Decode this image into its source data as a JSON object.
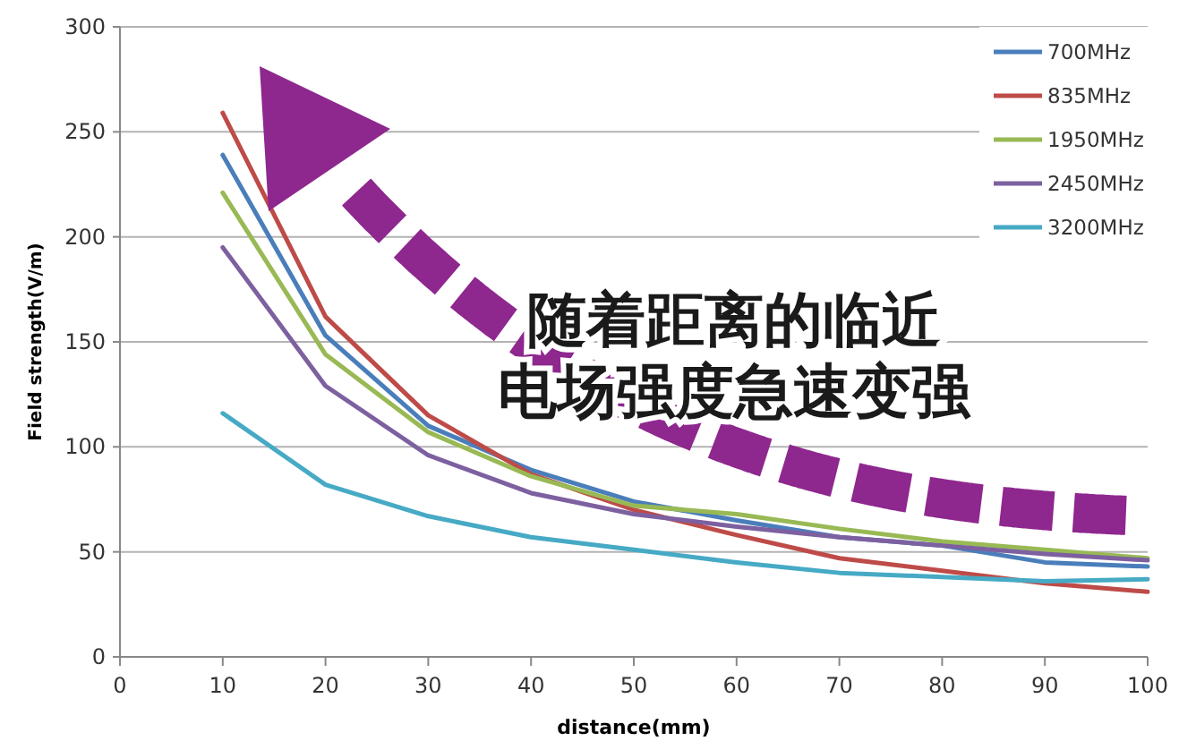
{
  "chart_data": {
    "type": "line",
    "xlabel": "distance(mm)",
    "ylabel": "Field strength(V/m)",
    "x": [
      10,
      20,
      30,
      40,
      50,
      60,
      70,
      80,
      90,
      100
    ],
    "series": [
      {
        "name": "700MHz",
        "color": "#4a7ebb",
        "values": [
          239,
          153,
          110,
          89,
          74,
          65,
          57,
          53,
          45,
          43
        ]
      },
      {
        "name": "835MHz",
        "color": "#be4b48",
        "values": [
          259,
          162,
          115,
          87,
          70,
          58,
          47,
          41,
          35,
          31
        ]
      },
      {
        "name": "1950MHz",
        "color": "#98b954",
        "values": [
          221,
          144,
          107,
          86,
          72,
          68,
          61,
          55,
          51,
          47
        ]
      },
      {
        "name": "2450MHz",
        "color": "#7d60a0",
        "values": [
          195,
          129,
          96,
          78,
          68,
          62,
          57,
          53,
          49,
          46
        ]
      },
      {
        "name": "3200MHz",
        "color": "#46aac5",
        "values": [
          116,
          82,
          67,
          57,
          51,
          45,
          40,
          38,
          36,
          37
        ]
      }
    ],
    "xlim": [
      0,
      100
    ],
    "ylim": [
      0,
      300
    ],
    "xticks": [
      0,
      10,
      20,
      30,
      40,
      50,
      60,
      70,
      80,
      90,
      100
    ],
    "yticks": [
      0,
      50,
      100,
      150,
      200,
      250,
      300
    ],
    "grid": "y",
    "legend": "top right",
    "marker": "none",
    "line_style": "solid",
    "annotations": [
      "随着距离的临近",
      "电场强度急速变强"
    ]
  }
}
